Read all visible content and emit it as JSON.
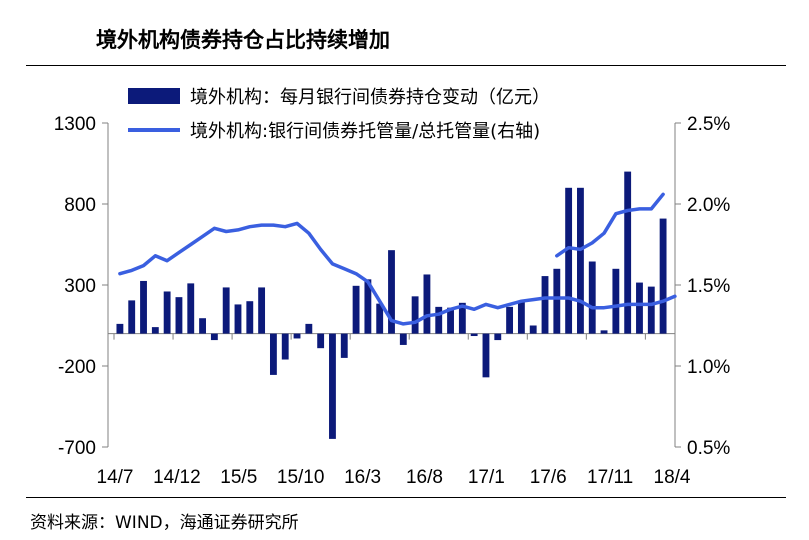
{
  "title": "境外机构债券持仓占比持续增加",
  "source": "资料来源：WIND，海通证券研究所",
  "chart_data": {
    "type": "bar+line",
    "legend_position": "top-left",
    "grid": false,
    "x_tick_labels": [
      "14/7",
      "14/12",
      "15/5",
      "15/10",
      "16/3",
      "16/8",
      "17/1",
      "17/6",
      "17/11",
      "18/4"
    ],
    "y_left": {
      "ticks": [
        -700,
        -200,
        300,
        800,
        1300
      ],
      "range": [
        -700,
        1300
      ]
    },
    "y_right": {
      "ticks": [
        "0.5%",
        "1.0%",
        "1.5%",
        "2.0%",
        "2.5%"
      ],
      "range": [
        0.5,
        2.5
      ]
    },
    "series": [
      {
        "name": "境外机构：每月银行间债券持仓变动（亿元）",
        "type": "bar",
        "axis": "left",
        "color": "#0c1a7a",
        "values": [
          60,
          205,
          325,
          40,
          260,
          225,
          310,
          95,
          -40,
          285,
          180,
          200,
          285,
          -255,
          -160,
          -30,
          60,
          -90,
          -650,
          -150,
          295,
          335,
          185,
          515,
          -70,
          230,
          365,
          165,
          160,
          190,
          -15,
          -270,
          -40,
          165,
          200,
          50,
          355,
          400,
          900,
          900,
          445,
          20,
          400,
          1000,
          315,
          290,
          710
        ]
      },
      {
        "name": "境外机构:银行间债券托管量/总托管量(右轴)",
        "type": "line",
        "axis": "right",
        "color": "#3a5fe0",
        "segments": [
          [
            1.57,
            1.59,
            1.62,
            1.68,
            1.65,
            1.7,
            1.75,
            1.8,
            1.85,
            1.83,
            1.84,
            1.86,
            1.87,
            1.87,
            1.86,
            1.88,
            1.82,
            1.72,
            1.63,
            1.6,
            1.57,
            1.52,
            1.4,
            1.28,
            1.26,
            1.27,
            1.31,
            1.32,
            1.35,
            1.37,
            1.35,
            1.38,
            1.36,
            1.38,
            1.4,
            1.41,
            1.42,
            1.42,
            1.42,
            1.4,
            1.36,
            1.36,
            1.37,
            1.38,
            1.38,
            1.38,
            1.4,
            1.43
          ],
          [
            1.68,
            1.73,
            1.72,
            1.76,
            1.82,
            1.94,
            1.96,
            1.97,
            1.97,
            2.06
          ]
        ]
      }
    ]
  }
}
